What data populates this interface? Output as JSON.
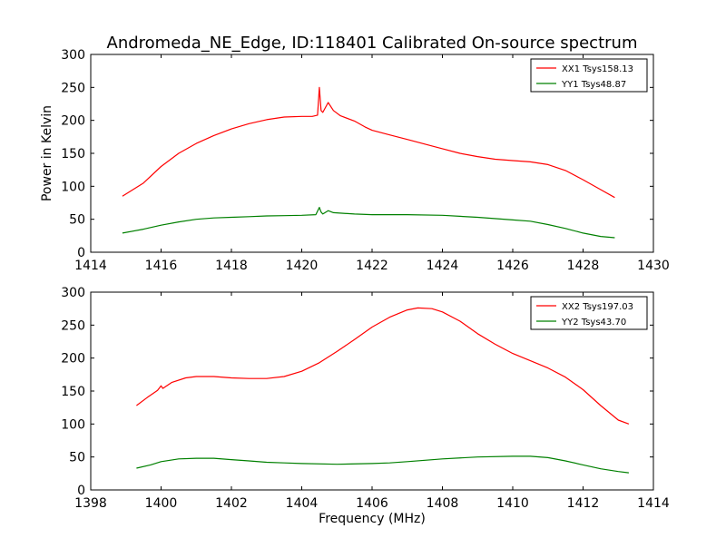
{
  "title": "Andromeda_NE_Edge, ID:118401 Calibrated On-source spectrum",
  "xlabel": "Frequency (MHz)",
  "ylabel": "Power in Kelvin",
  "chart_data": [
    {
      "type": "line",
      "xlim": [
        1414,
        1430
      ],
      "ylim": [
        0,
        300
      ],
      "x_ticks": [
        "1414",
        "1416",
        "1418",
        "1420",
        "1422",
        "1424",
        "1426",
        "1428",
        "1430"
      ],
      "y_ticks": [
        "0",
        "50",
        "100",
        "150",
        "200",
        "250",
        "300"
      ],
      "ylabel": "Power in Kelvin",
      "legend_position": "top-right",
      "series": [
        {
          "name": "XX1 Tsys158.13",
          "color": "#ff0000",
          "points": [
            [
              1414.9,
              85
            ],
            [
              1415.5,
              105
            ],
            [
              1416,
              130
            ],
            [
              1416.5,
              150
            ],
            [
              1417,
              165
            ],
            [
              1417.5,
              177
            ],
            [
              1418,
              187
            ],
            [
              1418.5,
              195
            ],
            [
              1419,
              201
            ],
            [
              1419.5,
              205
            ],
            [
              1420,
              206
            ],
            [
              1420.3,
              206
            ],
            [
              1420.45,
              208
            ],
            [
              1420.5,
              250
            ],
            [
              1420.55,
              215
            ],
            [
              1420.6,
              212
            ],
            [
              1420.75,
              227
            ],
            [
              1420.9,
              215
            ],
            [
              1421.1,
              207
            ],
            [
              1421.5,
              199
            ],
            [
              1421.8,
              190
            ],
            [
              1422,
              185
            ],
            [
              1422.5,
              178
            ],
            [
              1423,
              171
            ],
            [
              1423.5,
              164
            ],
            [
              1424,
              157
            ],
            [
              1424.5,
              150
            ],
            [
              1425,
              145
            ],
            [
              1425.5,
              141
            ],
            [
              1426,
              139
            ],
            [
              1426.5,
              137
            ],
            [
              1427,
              133
            ],
            [
              1427.5,
              124
            ],
            [
              1428,
              110
            ],
            [
              1428.5,
              95
            ],
            [
              1428.9,
              83
            ]
          ]
        },
        {
          "name": "YY1 Tsys48.87",
          "color": "#008000",
          "points": [
            [
              1414.9,
              29
            ],
            [
              1415.5,
              35
            ],
            [
              1416,
              41
            ],
            [
              1416.5,
              46
            ],
            [
              1417,
              50
            ],
            [
              1417.5,
              52
            ],
            [
              1418,
              53
            ],
            [
              1418.5,
              54
            ],
            [
              1419,
              55
            ],
            [
              1419.5,
              55.5
            ],
            [
              1420,
              56
            ],
            [
              1420.4,
              57
            ],
            [
              1420.5,
              68
            ],
            [
              1420.55,
              61
            ],
            [
              1420.6,
              58
            ],
            [
              1420.75,
              63
            ],
            [
              1420.9,
              60
            ],
            [
              1421.5,
              58
            ],
            [
              1422,
              57
            ],
            [
              1423,
              57
            ],
            [
              1424,
              56
            ],
            [
              1425,
              53
            ],
            [
              1426,
              49
            ],
            [
              1426.5,
              47
            ],
            [
              1427,
              42
            ],
            [
              1427.5,
              36
            ],
            [
              1428,
              29
            ],
            [
              1428.5,
              24
            ],
            [
              1428.9,
              22
            ]
          ]
        }
      ]
    },
    {
      "type": "line",
      "xlim": [
        1398,
        1414
      ],
      "ylim": [
        0,
        300
      ],
      "x_ticks": [
        "1398",
        "1400",
        "1402",
        "1404",
        "1406",
        "1408",
        "1410",
        "1412",
        "1414"
      ],
      "y_ticks": [
        "0",
        "50",
        "100",
        "150",
        "200",
        "250",
        "300"
      ],
      "xlabel": "Frequency (MHz)",
      "legend_position": "top-right",
      "series": [
        {
          "name": "XX2 Tsys197.03",
          "color": "#ff0000",
          "points": [
            [
              1399.3,
              128
            ],
            [
              1399.6,
              140
            ],
            [
              1399.9,
              151
            ],
            [
              1400.0,
              158
            ],
            [
              1400.05,
              154
            ],
            [
              1400.3,
              163
            ],
            [
              1400.7,
              170
            ],
            [
              1401,
              172
            ],
            [
              1401.5,
              172
            ],
            [
              1402,
              170
            ],
            [
              1402.5,
              169
            ],
            [
              1403,
              169
            ],
            [
              1403.5,
              172
            ],
            [
              1404,
              180
            ],
            [
              1404.5,
              193
            ],
            [
              1405,
              210
            ],
            [
              1405.5,
              228
            ],
            [
              1406,
              247
            ],
            [
              1406.5,
              262
            ],
            [
              1407,
              273
            ],
            [
              1407.3,
              276
            ],
            [
              1407.7,
              275
            ],
            [
              1408,
              270
            ],
            [
              1408.5,
              256
            ],
            [
              1409,
              237
            ],
            [
              1409.5,
              221
            ],
            [
              1410,
              207
            ],
            [
              1410.5,
              196
            ],
            [
              1411,
              185
            ],
            [
              1411.5,
              171
            ],
            [
              1412,
              152
            ],
            [
              1412.5,
              128
            ],
            [
              1413,
              106
            ],
            [
              1413.3,
              100
            ]
          ]
        },
        {
          "name": "YY2 Tsys43.70",
          "color": "#008000",
          "points": [
            [
              1399.3,
              33
            ],
            [
              1399.7,
              38
            ],
            [
              1400,
              43
            ],
            [
              1400.5,
              47
            ],
            [
              1401,
              48
            ],
            [
              1401.5,
              48
            ],
            [
              1402,
              46
            ],
            [
              1402.5,
              44
            ],
            [
              1403,
              42
            ],
            [
              1403.5,
              41
            ],
            [
              1404,
              40
            ],
            [
              1405,
              39
            ],
            [
              1406,
              40
            ],
            [
              1406.5,
              41
            ],
            [
              1407,
              43
            ],
            [
              1408,
              47
            ],
            [
              1409,
              50
            ],
            [
              1410,
              51
            ],
            [
              1410.5,
              51
            ],
            [
              1411,
              49
            ],
            [
              1411.5,
              44
            ],
            [
              1412,
              38
            ],
            [
              1412.5,
              32
            ],
            [
              1413,
              28
            ],
            [
              1413.3,
              26
            ]
          ]
        }
      ]
    }
  ]
}
